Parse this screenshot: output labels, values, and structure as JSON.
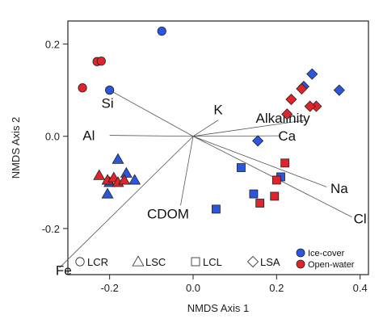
{
  "chart_data": {
    "type": "scatter",
    "title": "",
    "xlabel": "NMDS Axis 1",
    "ylabel": "NMDS Axis 2",
    "xlim": [
      -0.3,
      0.42
    ],
    "ylim": [
      -0.3,
      0.25
    ],
    "xticks": [
      -0.2,
      0.0,
      0.2,
      0.4
    ],
    "xtick_labels": [
      "-0.2",
      "0.0",
      "0.2",
      "0.4"
    ],
    "yticks": [
      -0.2,
      0.0,
      0.2
    ],
    "ytick_labels": [
      "-0.2",
      "0.0",
      "0.2"
    ],
    "grid": false,
    "colors": {
      "ice_cover": "#2b57e0",
      "open_water": "#e0242a",
      "vector": "#555555"
    },
    "legend_sites": [
      {
        "label": "LCR",
        "shape": "circle"
      },
      {
        "label": "LSC",
        "shape": "triangle"
      },
      {
        "label": "LCL",
        "shape": "square"
      },
      {
        "label": "LSA",
        "shape": "diamond"
      }
    ],
    "legend_seasons": [
      {
        "label": "Ice-cover",
        "color_key": "ice_cover"
      },
      {
        "label": "Open-water",
        "color_key": "open_water"
      }
    ],
    "vectors": [
      {
        "label": "Si",
        "x": -0.21,
        "y": 0.105,
        "lx": -0.205,
        "ly": 0.072
      },
      {
        "label": "Al",
        "x": -0.2,
        "y": 0.002,
        "lx": -0.25,
        "ly": 0.002
      },
      {
        "label": "K",
        "x": 0.06,
        "y": 0.035,
        "lx": 0.06,
        "ly": 0.058
      },
      {
        "label": "Alkalinity",
        "x": 0.27,
        "y": 0.035,
        "lx": 0.215,
        "ly": 0.04
      },
      {
        "label": "Ca",
        "x": 0.21,
        "y": 0.001,
        "lx": 0.225,
        "ly": 0.001
      },
      {
        "label": "Na",
        "x": 0.32,
        "y": -0.11,
        "lx": 0.35,
        "ly": -0.113
      },
      {
        "label": "Cl",
        "x": 0.38,
        "y": -0.175,
        "lx": 0.4,
        "ly": -0.178
      },
      {
        "label": "CDOM",
        "x": -0.03,
        "y": -0.15,
        "lx": -0.06,
        "ly": -0.168
      },
      {
        "label": "Fe",
        "x": -0.32,
        "y": -0.285,
        "lx": -0.31,
        "ly": -0.29
      }
    ],
    "series": [
      {
        "name": "LCR",
        "shape": "circle",
        "season": "ice_cover",
        "x": [
          -0.075,
          -0.2
        ],
        "y": [
          0.228,
          0.1
        ]
      },
      {
        "name": "LCR",
        "shape": "circle",
        "season": "open_water",
        "x": [
          -0.23,
          -0.22,
          -0.265
        ],
        "y": [
          0.162,
          0.163,
          0.105
        ]
      },
      {
        "name": "LSC",
        "shape": "triangle",
        "season": "ice_cover",
        "x": [
          -0.18,
          -0.16,
          -0.2,
          -0.14,
          -0.205
        ],
        "y": [
          -0.05,
          -0.08,
          -0.1,
          -0.095,
          -0.125
        ]
      },
      {
        "name": "LSC",
        "shape": "triangle",
        "season": "open_water",
        "x": [
          -0.225,
          -0.205,
          -0.19,
          -0.18,
          -0.165
        ],
        "y": [
          -0.085,
          -0.095,
          -0.09,
          -0.1,
          -0.095
        ]
      },
      {
        "name": "LCL",
        "shape": "square",
        "season": "ice_cover",
        "x": [
          0.115,
          0.21,
          0.055,
          0.145
        ],
        "y": [
          -0.068,
          -0.088,
          -0.158,
          -0.125
        ]
      },
      {
        "name": "LCL",
        "shape": "square",
        "season": "open_water",
        "x": [
          0.22,
          0.2,
          0.16,
          0.195
        ],
        "y": [
          -0.058,
          -0.095,
          -0.145,
          -0.13
        ]
      },
      {
        "name": "LSA",
        "shape": "diamond",
        "season": "ice_cover",
        "x": [
          0.285,
          0.265,
          0.35,
          0.155
        ],
        "y": [
          0.135,
          0.108,
          0.1,
          -0.01
        ]
      },
      {
        "name": "LSA",
        "shape": "diamond",
        "season": "open_water",
        "x": [
          0.26,
          0.295,
          0.235,
          0.28,
          0.225
        ],
        "y": [
          0.103,
          0.065,
          0.08,
          0.065,
          0.048
        ]
      }
    ]
  }
}
